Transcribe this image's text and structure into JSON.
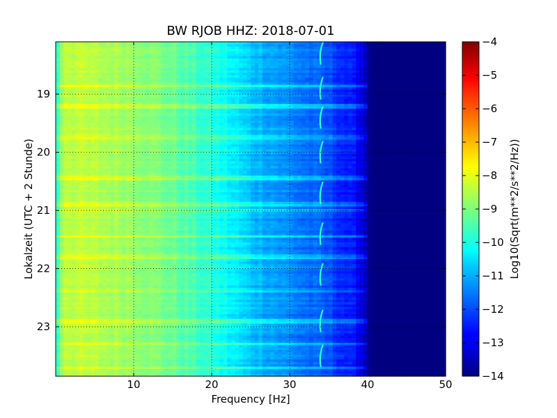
{
  "chart_data": {
    "type": "heatmap",
    "title": "BW RJOB HHZ: 2018-07-01",
    "xlabel": "Frequency [Hz]",
    "ylabel": "Lokalzeit (UTC + 2 Stunde)",
    "xlim": [
      0,
      50
    ],
    "ylim": [
      18.1,
      23.85
    ],
    "y_inverted": true,
    "x_ticks": [
      10,
      20,
      30,
      40,
      50
    ],
    "y_ticks": [
      19,
      20,
      21,
      22,
      23
    ],
    "grid": true,
    "colormap": "jet",
    "colorbar": {
      "label": "Log10(Sqrt(m**2/s**2/Hz))",
      "range": [
        -14,
        -4
      ],
      "ticks": [
        -4,
        -5,
        -6,
        -7,
        -8,
        -9,
        -10,
        -11,
        -12,
        -13,
        -14
      ]
    },
    "spectral_profile": {
      "frequency_hz": [
        0,
        1,
        5,
        10,
        15,
        20,
        25,
        30,
        35,
        39,
        40.5,
        50
      ],
      "log10_amplitude": [
        -10.0,
        -8.3,
        -8.5,
        -8.7,
        -9.2,
        -9.9,
        -10.8,
        -11.4,
        -12.0,
        -12.8,
        -14,
        -14
      ]
    },
    "noise_bursts_local_time": [
      18.85,
      19.2,
      19.75,
      20.45,
      20.9,
      21.0,
      21.45,
      21.8,
      22.4,
      22.9,
      23.3,
      23.7
    ],
    "tonal_line": {
      "frequency_hz": 34,
      "recurring_hours": [
        18.3,
        18.9,
        19.4,
        20.0,
        20.7,
        21.4,
        22.1,
        22.9,
        23.5
      ]
    }
  }
}
